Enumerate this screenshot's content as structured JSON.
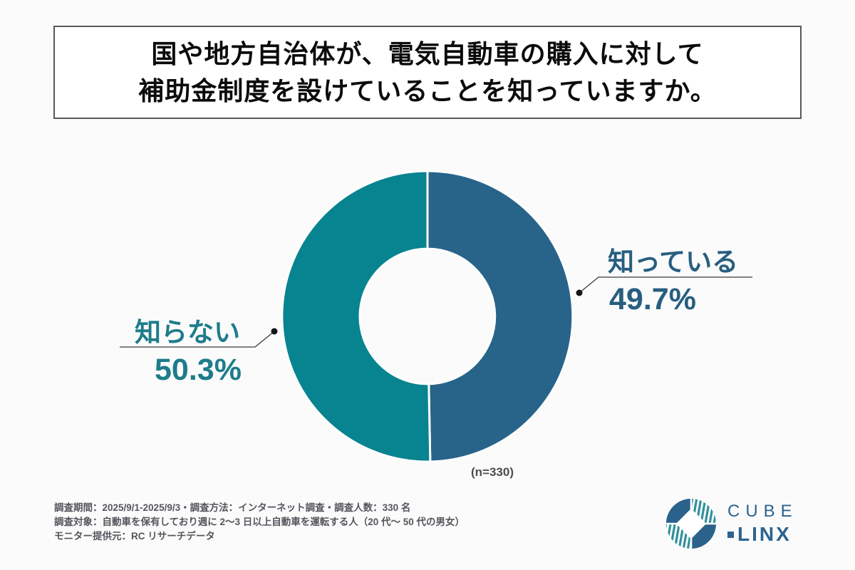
{
  "page": {
    "background": "#fbfbfb"
  },
  "title": {
    "line1": "国や地方自治体が、電気自動車の購入に対して",
    "line2": "補助金制度を設けていることを知っていますか。"
  },
  "chart_data": {
    "type": "pie",
    "subtype": "donut",
    "title": "国や地方自治体が、電気自動車の購入に対して補助金制度を設けていることを知っていますか。",
    "categories": [
      "知っている",
      "知らない"
    ],
    "values": [
      49.7,
      50.3
    ],
    "value_labels": [
      "49.7%",
      "50.3%"
    ],
    "unit": "%",
    "sample_size": 330,
    "sample_size_label": "(n=330)",
    "colors": [
      "#28648a",
      "#088490"
    ],
    "label_colors": [
      "#275e80",
      "#1e7c8b"
    ],
    "start_angle_deg": 0,
    "direction": "clockwise",
    "inner_radius_ratio": 0.465,
    "slice_gap_color": "#ffffff",
    "legend": "none"
  },
  "footnote": {
    "line1": "調査期間：2025/9/1-2025/9/3・調査方法：インターネット調査・調査人数：330 名",
    "line2": "調査対象：自動車を保有しており週に 2〜3 日以上自動車を運転する人（20 代〜 50 代の男女）",
    "line3": "モニター提供元：RC リサーチデータ"
  },
  "logo": {
    "line1": "CUBE",
    "line2": "LINX"
  }
}
